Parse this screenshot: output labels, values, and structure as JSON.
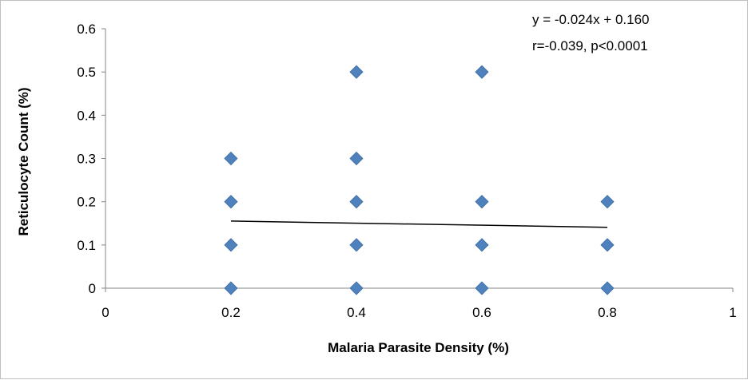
{
  "chart_data": {
    "type": "scatter",
    "title": "",
    "xlabel": "Malaria Parasite Density (%)",
    "ylabel": "Reticulocyte Count (%)",
    "xlim": [
      0,
      1
    ],
    "ylim": [
      0,
      0.6
    ],
    "x_ticks": [
      "0",
      "0.2",
      "0.4",
      "0.6",
      "0.8",
      "1"
    ],
    "y_ticks": [
      "0",
      "0.1",
      "0.2",
      "0.3",
      "0.4",
      "0.5",
      "0.6"
    ],
    "grid": false,
    "legend": "none",
    "marker": "diamond",
    "marker_color": "#4f81bd",
    "points": [
      {
        "x": 0.2,
        "y": 0
      },
      {
        "x": 0.2,
        "y": 0.1
      },
      {
        "x": 0.2,
        "y": 0.2
      },
      {
        "x": 0.2,
        "y": 0.3
      },
      {
        "x": 0.4,
        "y": 0
      },
      {
        "x": 0.4,
        "y": 0.1
      },
      {
        "x": 0.4,
        "y": 0.2
      },
      {
        "x": 0.4,
        "y": 0.3
      },
      {
        "x": 0.4,
        "y": 0.5
      },
      {
        "x": 0.6,
        "y": 0
      },
      {
        "x": 0.6,
        "y": 0.1
      },
      {
        "x": 0.6,
        "y": 0.2
      },
      {
        "x": 0.6,
        "y": 0.5
      },
      {
        "x": 0.8,
        "y": 0
      },
      {
        "x": 0.8,
        "y": 0.1
      },
      {
        "x": 0.8,
        "y": 0.2
      }
    ],
    "trendline": {
      "slope": -0.024,
      "intercept": 0.16,
      "x_start": 0.2,
      "x_end": 0.8,
      "color": "#000000"
    },
    "annotations": [
      "y = -0.024x + 0.160",
      "r=-0.039, p<0.0001"
    ]
  }
}
